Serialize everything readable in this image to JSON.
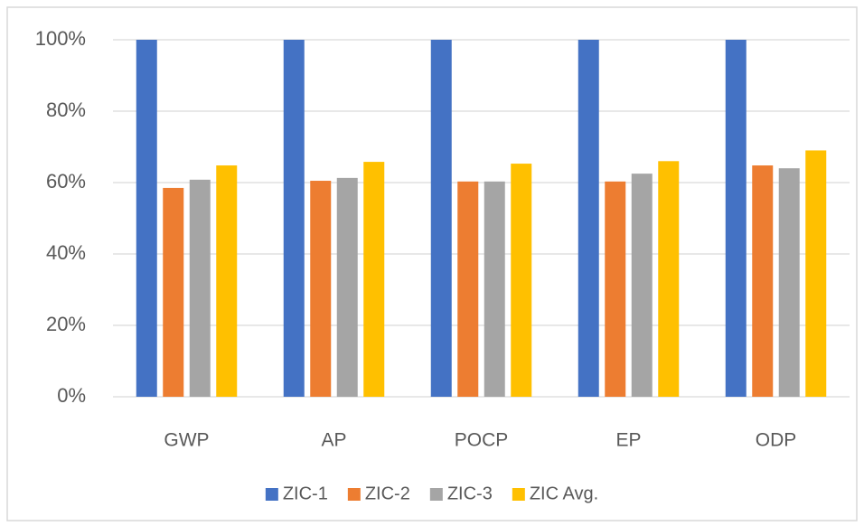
{
  "chart_data": {
    "type": "bar",
    "categories": [
      "GWP",
      "AP",
      "POCP",
      "EP",
      "ODP"
    ],
    "series": [
      {
        "name": "ZIC-1",
        "color": "#4472c4",
        "values": [
          100,
          100,
          100,
          100,
          100
        ]
      },
      {
        "name": "ZIC-2",
        "color": "#ed7d31",
        "values": [
          58.5,
          60.5,
          60.3,
          60.3,
          64.8
        ]
      },
      {
        "name": "ZIC-3",
        "color": "#a5a5a5",
        "values": [
          60.8,
          61.3,
          60.3,
          62.5,
          64
        ]
      },
      {
        "name": "ZIC Avg.",
        "color": "#ffc000",
        "values": [
          64.8,
          65.8,
          65.3,
          66,
          69
        ]
      }
    ],
    "ylim": [
      0,
      100
    ],
    "yticks": [
      {
        "value": 0,
        "label": "0%"
      },
      {
        "value": 20,
        "label": "20%"
      },
      {
        "value": 40,
        "label": "40%"
      },
      {
        "value": 60,
        "label": "60%"
      },
      {
        "value": 80,
        "label": "80%"
      },
      {
        "value": 100,
        "label": "100%"
      }
    ],
    "grid": true,
    "legend": "bottom"
  }
}
